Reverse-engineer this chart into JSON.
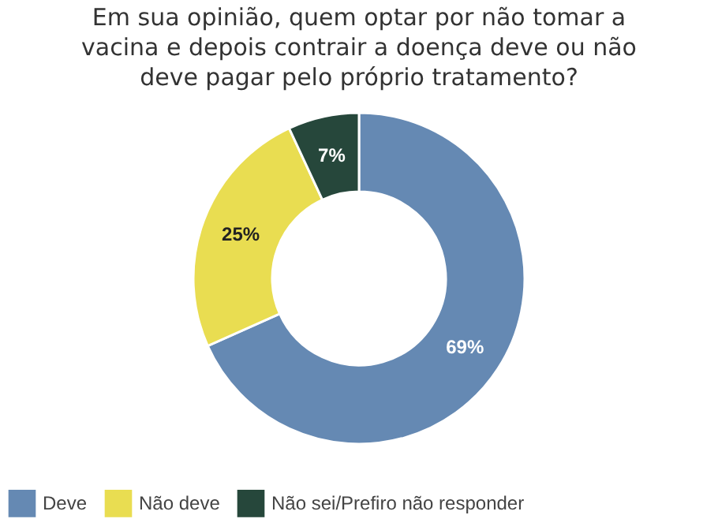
{
  "chart_data": {
    "type": "donut",
    "title": "Em sua opinião, quem optar por não tomar a vacina e depois contrair a doença deve ou não deve pagar pelo próprio tratamento?",
    "categories": [
      "Deve",
      "Não deve",
      "Não sei/Prefiro não responder"
    ],
    "values": [
      69,
      25,
      7
    ],
    "colors": [
      "#6589b3",
      "#e9dd51",
      "#26473b"
    ],
    "value_labels": [
      "69%",
      "25%",
      "7%"
    ],
    "legend": "bottom"
  }
}
